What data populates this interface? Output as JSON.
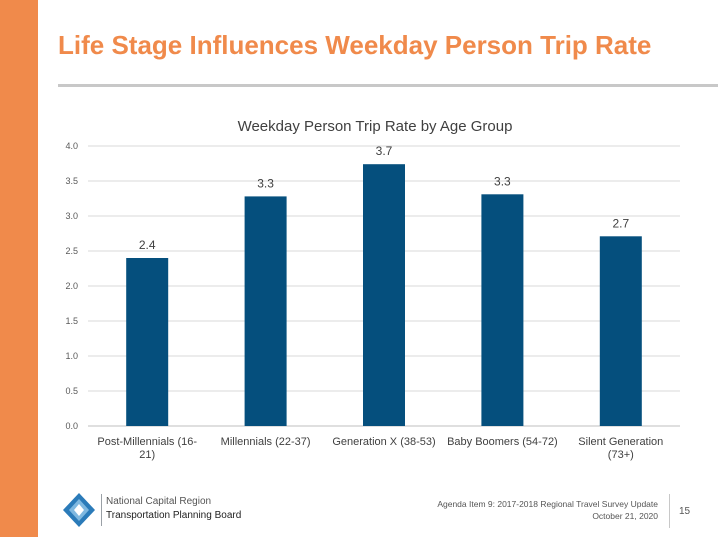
{
  "slide": {
    "title": "Life Stage Influences Weekday Person Trip Rate",
    "accent_color": "#f08a4b",
    "bar_color": "#054f7d"
  },
  "chart_data": {
    "type": "bar",
    "title": "Weekday Person Trip Rate by Age Group",
    "categories": [
      [
        "Post-Millennials (16-",
        "21)"
      ],
      [
        "Millennials (22-37)"
      ],
      [
        "Generation X (38-53)"
      ],
      [
        "Baby Boomers (54-72)"
      ],
      [
        "Silent Generation",
        "(73+)"
      ]
    ],
    "values": [
      2.4,
      3.28,
      3.74,
      3.31,
      2.71
    ],
    "data_labels": [
      "2.4",
      "3.3",
      "3.7",
      "3.3",
      "2.7"
    ],
    "y_ticks": [
      "0.0",
      "0.5",
      "1.0",
      "1.5",
      "2.0",
      "2.5",
      "3.0",
      "3.5",
      "4.0"
    ],
    "ylim": [
      0,
      4
    ],
    "xlabel": "",
    "ylabel": "",
    "grid": true,
    "legend": "none"
  },
  "footer": {
    "org_line1": "National Capital Region",
    "org_line2": "Transportation Planning Board",
    "agenda_line1": "Agenda Item 9: 2017-2018 Regional Travel Survey Update",
    "agenda_line2": "October 21, 2020",
    "page_number": "15"
  }
}
